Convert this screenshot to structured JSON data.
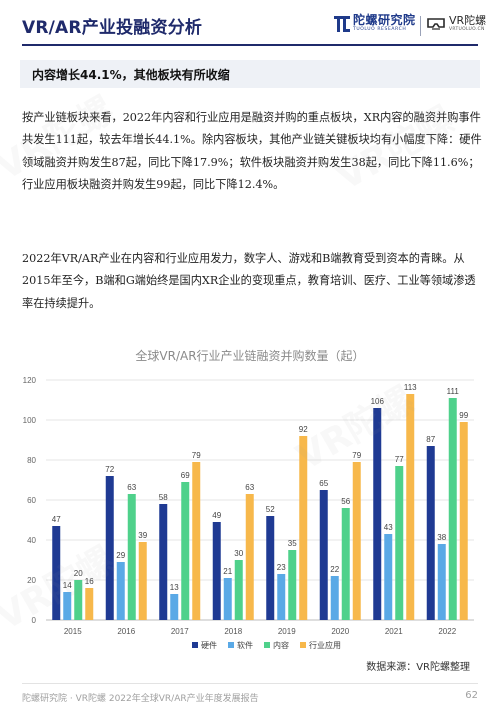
{
  "header": {
    "title": "VR/AR产业投融资分析",
    "logo1_cn": "陀螺研究院",
    "logo1_en": "TUOLUO RESEARCH",
    "logo2_cn": "VR陀螺",
    "logo2_en": "VRTUOLUO.CN"
  },
  "banner": {
    "heading": "内容增长44.1%，其他板块有所收缩"
  },
  "paragraphs": [
    "按产业链板块来看，2022年内容和行业应用是融资并购的重点板块，XR内容的融资并购事件共发生111起，较去年增长44.1%。除内容板块，其他产业链关键板块均有小幅度下降：硬件领域融资并购发生87起，同比下降17.9%；软件板块融资并购发生38起，同比下降11.6%；行业应用板块融资并购发生99起，同比下降12.4%。",
    "2022年VR/AR产业在内容和行业应用发力，数字人、游戏和B端教育受到资本的青睐。从2015年至今，B端和G端始终是国内XR企业的变现重点，教育培训、医疗、工业等领域渗透率在持续提升。"
  ],
  "chart_data": {
    "type": "bar",
    "title": "全球VR/AR行业产业链融资并购数量（起）",
    "categories": [
      "2015",
      "2016",
      "2017",
      "2018",
      "2019",
      "2020",
      "2021",
      "2022"
    ],
    "series": [
      {
        "name": "硬件",
        "color": "#1f3a93",
        "values": [
          47,
          72,
          58,
          49,
          52,
          65,
          106,
          87
        ]
      },
      {
        "name": "软件",
        "color": "#5aa9e6",
        "values": [
          14,
          29,
          13,
          21,
          23,
          22,
          43,
          38
        ]
      },
      {
        "name": "内容",
        "color": "#4fd18b",
        "values": [
          20,
          63,
          69,
          30,
          35,
          56,
          77,
          111
        ]
      },
      {
        "name": "行业应用",
        "color": "#f7b84b",
        "values": [
          16,
          39,
          79,
          63,
          92,
          79,
          113,
          99
        ]
      }
    ],
    "ylim": [
      0,
      120
    ],
    "yticks": [
      0,
      20,
      40,
      60,
      80,
      100,
      120
    ],
    "grid": true,
    "legend": "bottom"
  },
  "source": "数据来源：VR陀螺整理",
  "footer": {
    "text": "陀螺研究院 · VR陀螺 2022年全球VR/AR产业年度发展报告",
    "page": "62"
  },
  "watermark": "VR陀螺",
  "colors": {
    "brand": "#1f2a6b",
    "banner_bg": "#eef1f6"
  }
}
